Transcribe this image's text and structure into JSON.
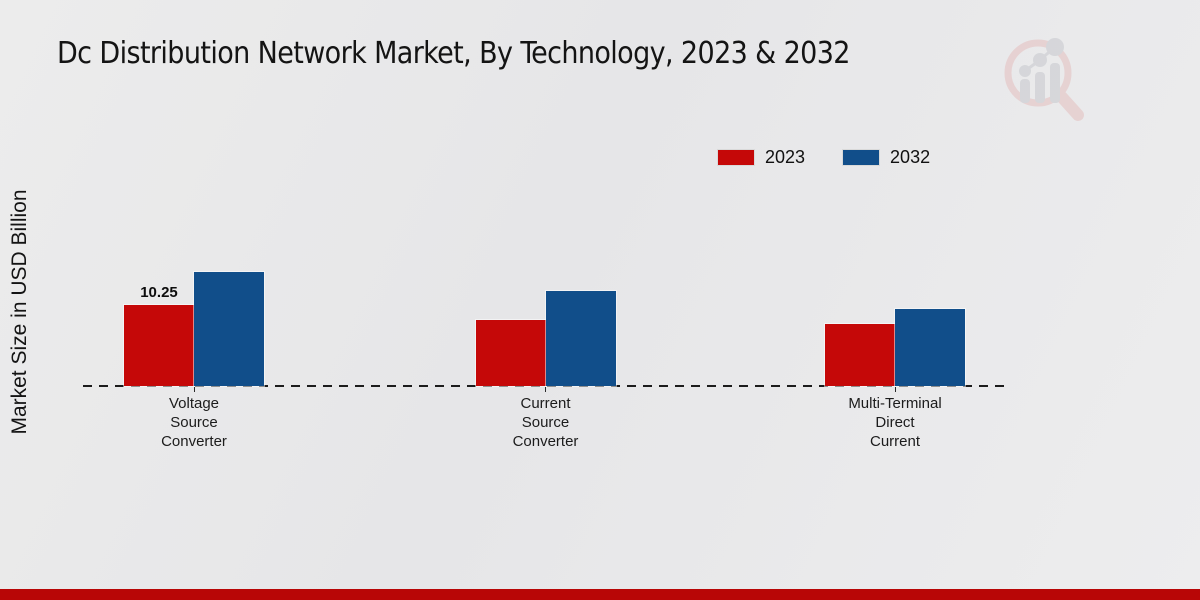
{
  "title": "Dc Distribution Network Market, By Technology, 2023 & 2032",
  "y_axis_label": "Market Size in USD Billion",
  "legend": [
    {
      "label": "2023",
      "color": "#c50808"
    },
    {
      "label": "2032",
      "color": "#114e8a"
    }
  ],
  "watermark_icon": "magnifier-bar-chart-logo",
  "footer_bar_color": "#b80606",
  "chart_data": {
    "type": "bar",
    "title": "Dc Distribution Network Market, By Technology, 2023 & 2032",
    "ylabel": "Market Size in USD Billion",
    "xlabel": "",
    "categories": [
      "Voltage Source Converter",
      "Current Source Converter",
      "Multi-Terminal Direct Current"
    ],
    "category_lines": [
      [
        "Voltage",
        "Source",
        "Converter"
      ],
      [
        "Current",
        "Source",
        "Converter"
      ],
      [
        "Multi-Terminal",
        "Direct",
        "Current"
      ]
    ],
    "series": [
      {
        "name": "2023",
        "color": "#c50808",
        "values": [
          10.25,
          8.35,
          7.85
        ]
      },
      {
        "name": "2032",
        "color": "#114e8a",
        "values": [
          14.4,
          12.0,
          9.75
        ]
      }
    ],
    "data_labels": [
      {
        "series": "2023",
        "category_index": 0,
        "text": "10.25"
      }
    ],
    "axis": {
      "baseline_style": "dashed",
      "y_gridlines": false,
      "y_tick_labels_shown": false
    },
    "legend_position": "top-right"
  }
}
